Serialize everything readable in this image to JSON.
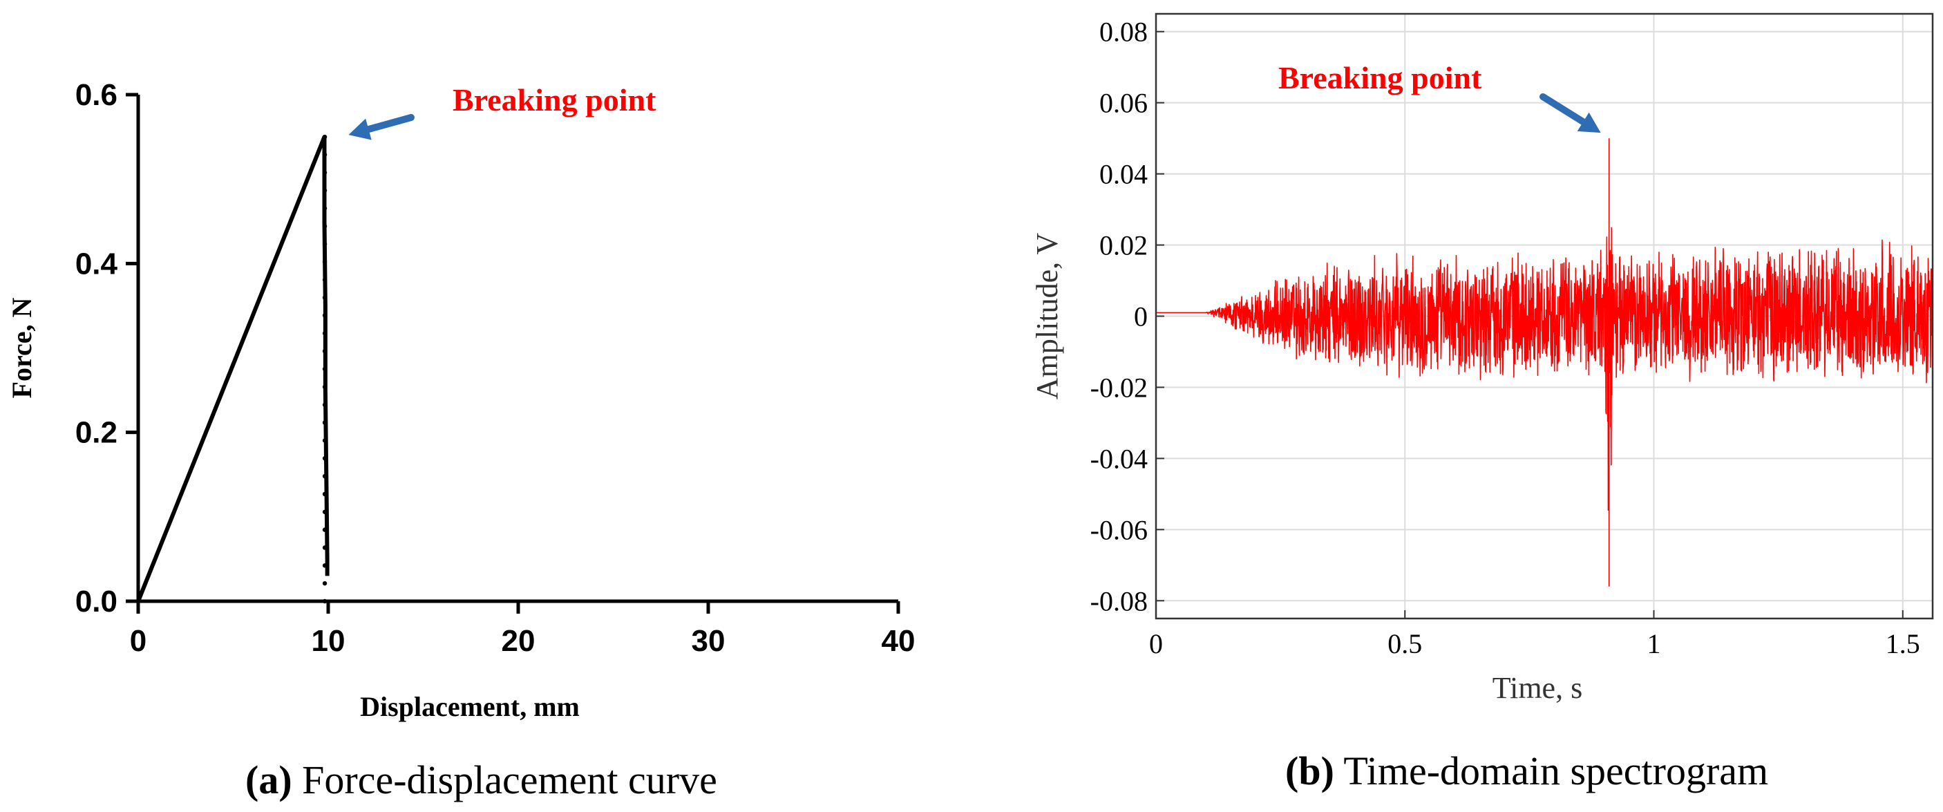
{
  "chart_data": [
    {
      "type": "line",
      "panel_label": "(a)",
      "caption": "Force-displacement curve",
      "xlabel": "Displacement, mm",
      "ylabel": "Force, N",
      "xlim": [
        0,
        40
      ],
      "ylim": [
        0,
        0.6
      ],
      "x_ticks": [
        0,
        10,
        20,
        30,
        40
      ],
      "x_tick_labels": [
        "0",
        "10",
        "20",
        "30",
        "40"
      ],
      "y_ticks": [
        0.0,
        0.2,
        0.4,
        0.6
      ],
      "y_tick_labels": [
        "0.0",
        "0.2",
        "0.4",
        "0.6"
      ],
      "grid": false,
      "series": [
        {
          "color": "#000000",
          "x": [
            0,
            9.8,
            9.8,
            9.85,
            9.85,
            9.9,
            9.95,
            9.95
          ],
          "y": [
            0,
            0.55,
            0.45,
            0.35,
            0.25,
            0.15,
            0.05,
            0.03
          ]
        }
      ],
      "annotation": {
        "text": "Breaking point",
        "color": "#ff0000",
        "arrow_color": "#2e6db4",
        "target": [
          9.8,
          0.55
        ]
      }
    },
    {
      "type": "line",
      "panel_label": "(b)",
      "caption": "Time-domain spectrogram",
      "xlabel": "Time, s",
      "ylabel": "Amplitude, V",
      "xlim": [
        0,
        1.56
      ],
      "ylim": [
        -0.085,
        0.085
      ],
      "x_ticks": [
        0,
        0.5,
        1,
        1.5
      ],
      "x_tick_labels": [
        "0",
        "0.5",
        "1",
        "1.5"
      ],
      "y_ticks": [
        -0.08,
        -0.06,
        -0.04,
        -0.02,
        0,
        0.02,
        0.04,
        0.06,
        0.08
      ],
      "y_tick_labels": [
        "-0.08",
        "-0.06",
        "-0.04",
        "-0.02",
        "0",
        "0.02",
        "0.04",
        "0.06",
        "0.08"
      ],
      "grid": true,
      "series": [
        {
          "color": "#ff0000",
          "x": [
            0,
            0.1,
            0.2,
            0.3,
            0.4,
            0.5,
            0.6,
            0.7,
            0.8,
            0.9,
            0.91,
            0.92,
            1.0,
            1.1,
            1.2,
            1.3,
            1.4,
            1.5,
            1.56
          ],
          "y_min": [
            0.001,
            0.001,
            -0.008,
            -0.015,
            -0.018,
            -0.018,
            -0.019,
            -0.018,
            -0.017,
            -0.019,
            -0.076,
            -0.019,
            -0.018,
            -0.019,
            -0.02,
            -0.021,
            -0.02,
            -0.021,
            -0.02
          ],
          "y_max": [
            0.001,
            0.001,
            0.008,
            0.014,
            0.017,
            0.018,
            0.018,
            0.019,
            0.018,
            0.02,
            0.05,
            0.02,
            0.019,
            0.02,
            0.021,
            0.022,
            0.021,
            0.022,
            0.021
          ]
        }
      ],
      "annotation": {
        "text": "Breaking point",
        "color": "#ff0000",
        "arrow_color": "#2e6db4",
        "target": [
          0.91,
          0.05
        ]
      }
    }
  ]
}
